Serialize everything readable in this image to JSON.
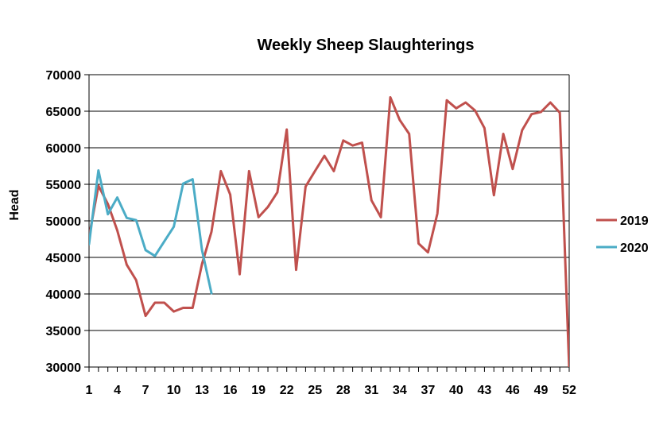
{
  "chart_data": {
    "type": "line",
    "title": "Weekly Sheep Slaughterings",
    "xlabel": "",
    "ylabel": "Head",
    "xlim": [
      1,
      52
    ],
    "ylim": [
      30000,
      70000
    ],
    "ytick_step": 5000,
    "xtick_labels": [
      1,
      4,
      7,
      10,
      13,
      16,
      19,
      22,
      25,
      28,
      31,
      34,
      37,
      40,
      43,
      46,
      49,
      52
    ],
    "grid": "horizontal",
    "legend_position": "right",
    "series": [
      {
        "name": "2019",
        "color": "#C0504D",
        "x": [
          1,
          2,
          3,
          4,
          5,
          6,
          7,
          8,
          9,
          10,
          11,
          12,
          13,
          14,
          15,
          16,
          17,
          18,
          19,
          20,
          21,
          22,
          23,
          24,
          25,
          26,
          27,
          28,
          29,
          30,
          31,
          32,
          33,
          34,
          35,
          36,
          37,
          38,
          39,
          40,
          41,
          42,
          43,
          44,
          45,
          46,
          47,
          48,
          49,
          50,
          51,
          52
        ],
        "values": [
          47800,
          54800,
          52300,
          48700,
          44000,
          41900,
          37000,
          38800,
          38800,
          37600,
          38100,
          38100,
          44100,
          48500,
          56800,
          53600,
          42700,
          56800,
          50500,
          51900,
          53900,
          62500,
          43300,
          54700,
          56800,
          58900,
          56800,
          61000,
          60300,
          60700,
          52800,
          50500,
          66900,
          63800,
          61900,
          46900,
          45700,
          51000,
          66500,
          65400,
          66200,
          65100,
          62700,
          53500,
          61900,
          57100,
          62400,
          64600,
          64900,
          66200,
          64800,
          29800
        ]
      },
      {
        "name": "2020",
        "color": "#4BACC6",
        "x": [
          1,
          2,
          3,
          4,
          5,
          6,
          7,
          8,
          9,
          10,
          11,
          12,
          13,
          14
        ],
        "values": [
          46800,
          56900,
          50900,
          53200,
          50400,
          50100,
          46000,
          45200,
          47200,
          49200,
          55100,
          55700,
          46000,
          40100
        ]
      }
    ]
  }
}
